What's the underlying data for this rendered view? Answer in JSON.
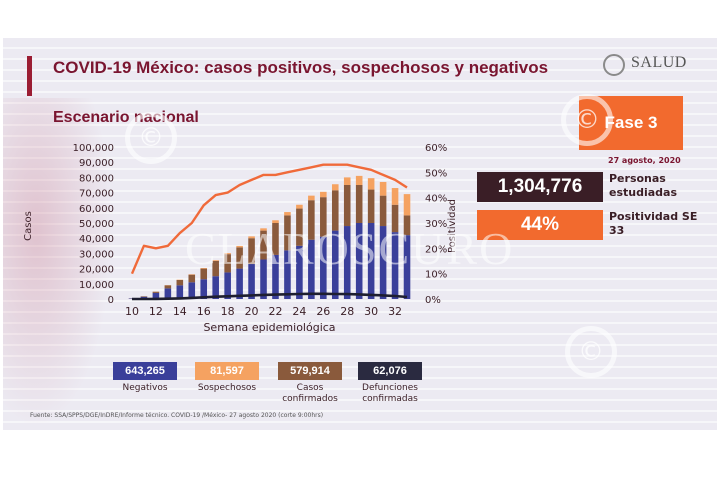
{
  "header": {
    "title": "COVID-19 México: casos positivos, sospechosos y negativos",
    "subtitle": "Escenario nacional",
    "logo_text": "SALUD",
    "phase": "Fase 3",
    "date": "27 agosto, 2020"
  },
  "stats": {
    "people_studied_value": "1,304,776",
    "people_studied_label": "Personas estudiadas",
    "positivity_value": "44%",
    "positivity_label": "Positividad SE 33"
  },
  "summary": [
    {
      "value": "643,265",
      "label": "Negativos",
      "color": "#3a3f9a"
    },
    {
      "value": "81,597",
      "label": "Sospechosos",
      "color": "#f5a261"
    },
    {
      "value": "579,914",
      "label": "Casos confirmados",
      "color": "#8a5a3c"
    },
    {
      "value": "62,076",
      "label": "Defunciones confirmadas",
      "color": "#2a2a40"
    }
  ],
  "source": "Fuente: SSA/SPPS/DGE/InDRE/Informe técnico. COVID-19 /México- 27 agosto 2020 (corte 9:00hrs)",
  "watermark": "CLAROSCURO",
  "chart_data": {
    "type": "bar",
    "xlabel": "Semana epidemiológica",
    "ylabel": "Casos",
    "y2label": "Positividad",
    "ylim": [
      0,
      100000
    ],
    "y2lim": [
      0,
      60
    ],
    "yticks": [
      "0",
      "10,000",
      "20,000",
      "30,000",
      "40,000",
      "50,000",
      "60,000",
      "70,000",
      "80,000",
      "90,000",
      "100,000"
    ],
    "y2ticks": [
      "0%",
      "10%",
      "20%",
      "30%",
      "40%",
      "50%",
      "60%"
    ],
    "xticks": [
      "10",
      "12",
      "14",
      "16",
      "18",
      "20",
      "22",
      "24",
      "26",
      "28",
      "30",
      "32"
    ],
    "categories": [
      10,
      11,
      12,
      13,
      14,
      15,
      16,
      17,
      18,
      19,
      20,
      21,
      22,
      23,
      24,
      25,
      26,
      27,
      28,
      29,
      30,
      31,
      32,
      33
    ],
    "series": [
      {
        "name": "Negativos",
        "color": "#3a3f9a",
        "stack": true,
        "values": [
          300,
          1500,
          4000,
          7000,
          9000,
          11000,
          13000,
          15000,
          17500,
          20000,
          23000,
          26000,
          29000,
          32000,
          35000,
          39000,
          41000,
          45000,
          48000,
          50000,
          50000,
          48000,
          44000,
          42000
        ]
      },
      {
        "name": "Confirmados",
        "color": "#8a5a3c",
        "stack": true,
        "values": [
          100,
          300,
          800,
          2000,
          3500,
          5000,
          7000,
          10000,
          12000,
          14000,
          17000,
          19000,
          21000,
          23000,
          24500,
          26000,
          26000,
          26500,
          27000,
          25000,
          22000,
          20000,
          18000,
          13000
        ]
      },
      {
        "name": "Sospechosos",
        "color": "#f5a261",
        "stack": true,
        "values": [
          0,
          50,
          100,
          150,
          200,
          300,
          400,
          500,
          700,
          900,
          1200,
          1500,
          1800,
          2200,
          2500,
          3000,
          3500,
          4000,
          5000,
          6000,
          7500,
          9000,
          11000,
          14000
        ]
      },
      {
        "name": "Defunciones",
        "color": "#1e1e30",
        "type": "line",
        "values": [
          0,
          20,
          80,
          200,
          400,
          700,
          1100,
          1500,
          1800,
          2100,
          2400,
          2700,
          2900,
          3100,
          3300,
          3400,
          3400,
          3300,
          3200,
          3000,
          2700,
          2400,
          2000,
          1300
        ]
      },
      {
        "name": "Positividad",
        "color": "#f06a3a",
        "type": "line",
        "axis": "y2",
        "values": [
          10,
          21,
          20,
          21,
          26,
          30,
          37,
          41,
          42,
          45,
          47,
          49,
          49,
          50,
          51,
          52,
          53,
          53,
          53,
          52,
          51,
          49,
          47,
          44
        ]
      }
    ]
  }
}
